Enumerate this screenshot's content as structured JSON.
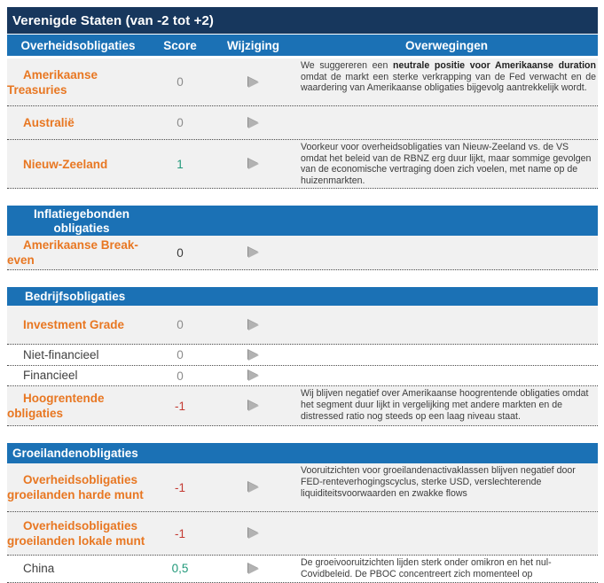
{
  "title": "Verenigde Staten (van -2 tot +2)",
  "columns": {
    "asset": "Overheidsobligaties",
    "score": "Score",
    "change": "Wijziging",
    "considerations": "Overwegingen"
  },
  "colors": {
    "title_bar_bg": "#17375D",
    "section_header_bg": "#1B71B5",
    "accent_orange": "#E87722",
    "score_neutral_gray": "#8C8C8C",
    "score_positive_green": "#21997A",
    "score_negative_red": "#C43A32"
  },
  "icons": {
    "change_unchanged": "right-triangle-arrow"
  },
  "sections": [
    {
      "header": null,
      "rows": [
        {
          "label": "Amerikaanse Treasuries",
          "score": "0",
          "change": "unchanged",
          "consideration": {
            "pre": "We suggereren een ",
            "bold": "neutrale positie voor Amerikaanse duration",
            "post": " omdat de markt een sterke verkrapping van de Fed verwacht en de waardering van Amerikaanse obligaties bijgevolg aantrekkelijk wordt."
          }
        },
        {
          "label": "Australië",
          "score": "0",
          "change": "unchanged",
          "consideration": {
            "text": ""
          }
        },
        {
          "label": "Nieuw-Zeeland",
          "score": "1",
          "change": "unchanged",
          "consideration": {
            "text": "Voorkeur voor overheidsobligaties van Nieuw-Zeeland vs. de VS omdat het beleid van de RBNZ erg duur lijkt, maar sommige gevolgen van de economische vertraging doen zich voelen, met name op de huizenmarkten."
          }
        }
      ]
    },
    {
      "header": "Inflatiegebonden obligaties",
      "rows": [
        {
          "label": "Amerikaanse Break-even",
          "score": "0",
          "change": "unchanged",
          "consideration": {
            "text": ""
          }
        }
      ]
    },
    {
      "header": "Bedrijfsobligaties",
      "rows": [
        {
          "label": "Investment Grade",
          "score": "0",
          "change": "unchanged",
          "consideration": {
            "text": ""
          }
        },
        {
          "label": "Niet-financieel",
          "score": "0",
          "change": "unchanged",
          "consideration": {
            "text": ""
          }
        },
        {
          "label": "Financieel",
          "score": "0",
          "change": "unchanged",
          "consideration": {
            "text": ""
          }
        },
        {
          "label": "Hoogrentende obligaties",
          "score": "-1",
          "change": "unchanged",
          "consideration": {
            "text": "Wij blijven negatief over Amerikaanse hoogrentende obligaties omdat het segment duur lijkt in vergelijking met andere markten en de distressed ratio nog steeds op een laag niveau staat."
          }
        }
      ]
    },
    {
      "header": "Groeilandenobligaties",
      "rows": [
        {
          "label": "Overheidsobligaties groeilanden harde munt",
          "score": "-1",
          "change": "unchanged",
          "consideration": {
            "text": "Vooruitzichten voor groeilandenactivaklassen blijven negatief door FED-renteverhogingscyclus, sterke USD, verslechterende liquiditeitsvoorwaarden en zwakke flows"
          }
        },
        {
          "label": "Overheidsobligaties groeilanden lokale munt",
          "score": "-1",
          "change": "unchanged",
          "consideration": {
            "text": ""
          }
        },
        {
          "label": "China",
          "score": "0,5",
          "change": "unchanged",
          "consideration": {
            "text": "De groeivooruitzichten lijden sterk onder omikron en het nul-Covidbeleid. De PBOC concentreert zich momenteel op"
          }
        }
      ]
    }
  ]
}
